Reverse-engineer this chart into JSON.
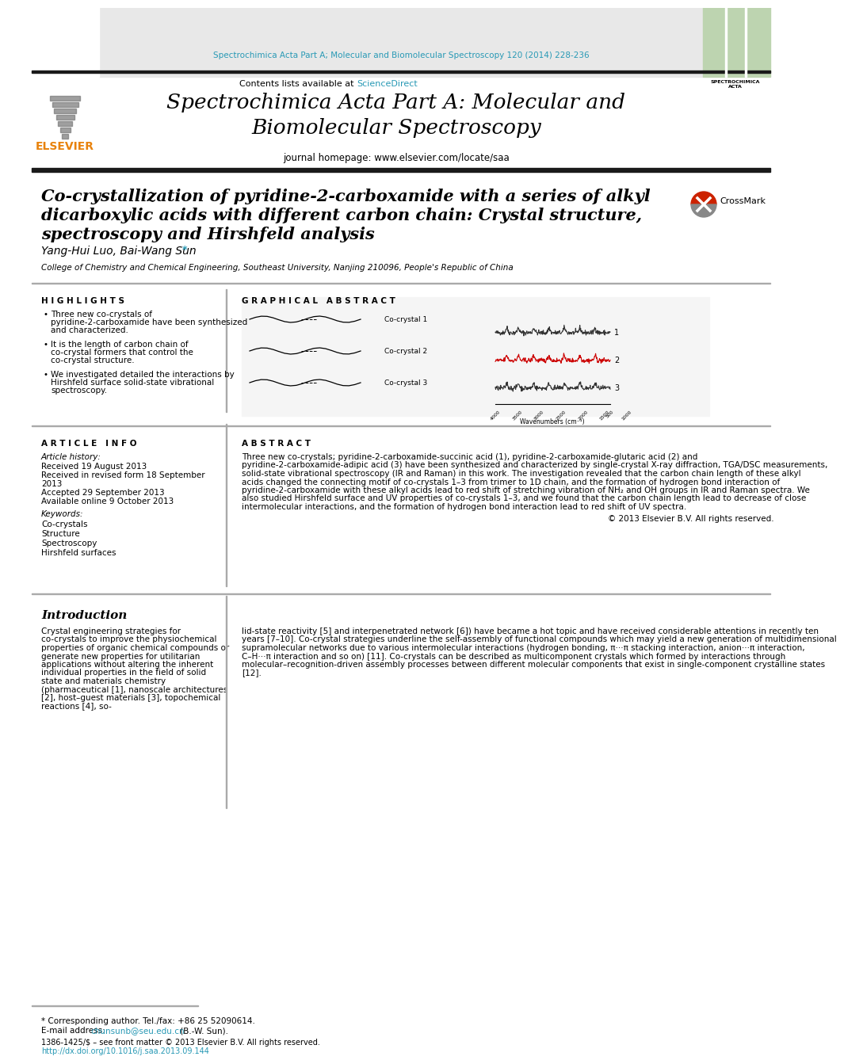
{
  "journal_url_text": "Spectrochimica Acta Part A; Molecular and Biomolecular Spectroscopy 120 (2014) 228-236",
  "journal_url_color": "#2899B5",
  "header_bg_color": "#E8E8E8",
  "contents_text": "Contents lists available at ",
  "sciencedirect_text": "ScienceDirect",
  "sciencedirect_color": "#2899B5",
  "journal_title": "Spectrochimica Acta Part A: Molecular and\nBiomolecular Spectroscopy",
  "journal_homepage": "journal homepage: www.elsevier.com/locate/saa",
  "article_title_line1": "Co-crystallization of pyridine-2-carboxamide with a series of alkyl",
  "article_title_line2": "dicarboxylic acids with different carbon chain: Crystal structure,",
  "article_title_line3": "spectroscopy and Hirshfeld analysis",
  "authors": "Yang-Hui Luo, Bai-Wang Sun",
  "affiliation": "College of Chemistry and Chemical Engineering, Southeast University, Nanjing 210096, People's Republic of China",
  "highlights_title": "H I G H L I G H T S",
  "highlights": [
    "Three new co-crystals of pyridine-2-carboxamide have been synthesized and characterized.",
    "It is the length of carbon chain of co-crystal formers that control the co-crystal structure.",
    "We investigated detailed the interactions by Hirshfeld surface solid-state vibrational spectroscopy."
  ],
  "graphical_abstract_title": "G R A P H I C A L   A B S T R A C T",
  "article_info_title": "A R T I C L E   I N F O",
  "article_history_title": "Article history:",
  "received_text": "Received 19 August 2013",
  "received_revised": "Received in revised form 18 September\n2013",
  "accepted": "Accepted 29 September 2013",
  "available": "Available online 9 October 2013",
  "keywords_title": "Keywords:",
  "keywords": [
    "Co-crystals",
    "Structure",
    "Spectroscopy",
    "Hirshfeld surfaces"
  ],
  "abstract_title": "A B S T R A C T",
  "abstract_text": "Three new co-crystals; pyridine-2-carboxamide-succinic acid (1), pyridine-2-carboxamide-glutaric acid (2) and pyridine-2-carboxamide-adipic acid (3) have been synthesized and characterized by single-crystal X-ray diffraction, TGA/DSC measurements, solid-state vibrational spectroscopy (IR and Raman) in this work. The investigation revealed that the carbon chain length of these alkyl acids changed the connecting motif of co-crystals 1–3 from trimer to 1D chain, and the formation of hydrogen bond interaction of pyridine-2-carboxamide with these alkyl acids lead to red shift of stretching vibration of NH₂ and OH groups in IR and Raman spectra. We also studied Hirshfeld surface and UV properties of co-crystals 1–3, and we found that the carbon chain length lead to decrease of close intermolecular interactions, and the formation of hydrogen bond interaction lead to red shift of UV spectra.",
  "copyright_text": "© 2013 Elsevier B.V. All rights reserved.",
  "intro_title": "Introduction",
  "intro_text1": "Crystal engineering strategies for co-crystals to improve the physiochemical properties of organic chemical compounds or generate new properties for utilitarian applications without altering the inherent individual properties in the field of solid state and materials chemistry (pharmaceutical [1], nanoscale architectures [2], host–guest materials [3], topochemical reactions [4], so-",
  "intro_text2": "lid-state reactivity [5] and interpenetrated network [6]) have became a hot topic and have received considerable attentions in recently ten years [7–10]. Co-crystal strategies underline the self-assembly of functional compounds which may yield a new generation of multidimensional supramolecular networks due to various intermolecular interactions (hydrogen bonding, π···π stacking interaction, anion···π interaction, C–H···π interaction and so on) [11]. Co-crystals can be described as multicomponent crystals which formed by interactions through molecular–recognition-driven assembly processes between different molecular components that exist in single-component crystalline states [12].",
  "footnote_text": "* Corresponding author. Tel./fax: +86 25 52090614.",
  "email_label": "E-mail address: ",
  "email_text": "chunsunb@seu.edu.cn",
  "email_suffix": " (B.-W. Sun).",
  "issn_text": "1386-1425/$ – see front matter © 2013 Elsevier B.V. All rights reserved.",
  "doi_text": "http://dx.doi.org/10.1016/j.saa.2013.09.144",
  "bg_color": "#FFFFFF",
  "text_color": "#000000"
}
